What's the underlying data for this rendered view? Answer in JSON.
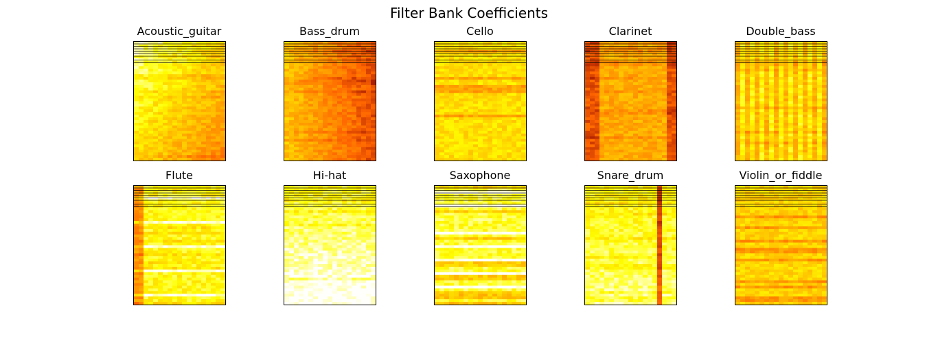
{
  "chart_data": {
    "type": "heatmap",
    "title": "Filter Bank Coefficients",
    "colormap": "hot",
    "grid": false,
    "axes_ticks": false,
    "panels": [
      {
        "title": "Acoustic_guitar",
        "variant": "gradient-diagonal",
        "tone": 0.28
      },
      {
        "title": "Bass_drum",
        "variant": "dark-right",
        "tone": 0.48
      },
      {
        "title": "Cello",
        "variant": "horizontal-bands",
        "tone": 0.3
      },
      {
        "title": "Clarinet",
        "variant": "dark-edges",
        "tone": 0.45
      },
      {
        "title": "Double_bass",
        "variant": "vertical-stripes",
        "tone": 0.3
      },
      {
        "title": "Flute",
        "variant": "light-with-lines",
        "tone": 0.22
      },
      {
        "title": "Hi-hat",
        "variant": "light-bottom",
        "tone": 0.22
      },
      {
        "title": "Saxophone",
        "variant": "light-bands",
        "tone": 0.18
      },
      {
        "title": "Snare_drum",
        "variant": "dark-stripe-right",
        "tone": 0.25
      },
      {
        "title": "Violin_or_fiddle",
        "variant": "horizontal-bands",
        "tone": 0.33
      }
    ]
  }
}
